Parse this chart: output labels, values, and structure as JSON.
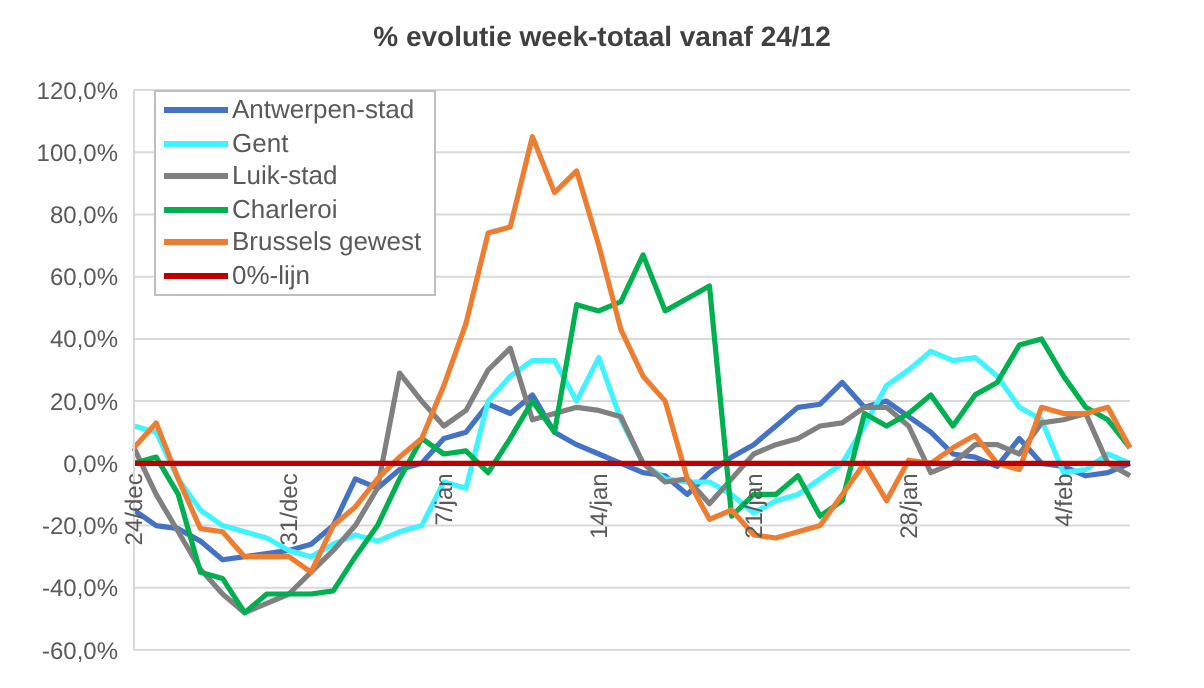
{
  "chart_data": {
    "type": "line",
    "title": "% evolutie week-totaal  vanaf 24/12",
    "categories": [
      "24/dec",
      null,
      null,
      null,
      null,
      null,
      null,
      "31/dec",
      null,
      null,
      null,
      null,
      null,
      null,
      "7/jan",
      null,
      null,
      null,
      null,
      null,
      null,
      "14/jan",
      null,
      null,
      null,
      null,
      null,
      null,
      "21/jan",
      null,
      null,
      null,
      null,
      null,
      null,
      "28/jan",
      null,
      null,
      null,
      null,
      null,
      null,
      "4/feb",
      null,
      null,
      null
    ],
    "series": [
      {
        "name": "Antwerpen-stad",
        "color": "#4472c4",
        "values": [
          -15,
          -20,
          -21,
          -25,
          -31,
          -30,
          -29,
          -28,
          -26,
          -20,
          -5,
          -8,
          -2,
          0,
          8,
          10,
          19,
          16,
          22,
          10,
          6,
          3,
          0,
          -3,
          -4,
          -10,
          -3,
          2,
          6,
          12,
          18,
          19,
          26,
          18,
          20,
          15,
          10,
          3,
          2,
          -1,
          8,
          0,
          -1,
          -4,
          -3,
          0
        ]
      },
      {
        "name": "Gent",
        "color": "#3ff3ff",
        "values": [
          12,
          10,
          -5,
          -15,
          -20,
          -22,
          -24,
          -28,
          -30,
          -26,
          -23,
          -25,
          -22,
          -20,
          -6,
          -8,
          20,
          28,
          33,
          33,
          20,
          34,
          14,
          0,
          -5,
          -6,
          -6,
          -10,
          -16,
          -12,
          -10,
          -5,
          0,
          12,
          25,
          30,
          36,
          33,
          34,
          28,
          18,
          14,
          -3,
          -2,
          3,
          0
        ]
      },
      {
        "name": "Luik-stad",
        "color": "#808080",
        "values": [
          5,
          -10,
          -22,
          -34,
          -42,
          -48,
          -45,
          -42,
          -35,
          -28,
          -20,
          -8,
          29,
          20,
          12,
          17,
          30,
          37,
          14,
          16,
          18,
          17,
          15,
          0,
          -6,
          -5,
          -13,
          -5,
          3,
          6,
          8,
          12,
          13,
          18,
          18,
          12,
          -3,
          0,
          6,
          6,
          3,
          13,
          14,
          16,
          0,
          -4
        ]
      },
      {
        "name": "Charleroi",
        "color": "#00b050",
        "values": [
          0,
          2,
          -10,
          -35,
          -37,
          -48,
          -42,
          -42,
          -42,
          -41,
          -30,
          -20,
          -5,
          8,
          3,
          4,
          -3,
          8,
          20,
          10,
          51,
          49,
          52,
          67,
          49,
          53,
          57,
          -17,
          -10,
          -10,
          -4,
          -17,
          -12,
          16,
          12,
          16,
          22,
          12,
          22,
          26,
          38,
          40,
          28,
          18,
          14,
          5
        ]
      },
      {
        "name": "Brussels gewest",
        "color": "#ed7d31",
        "values": [
          5,
          13,
          -5,
          -21,
          -22,
          -30,
          -30,
          -30,
          -35,
          -20,
          -14,
          -5,
          2,
          8,
          25,
          45,
          74,
          76,
          105,
          87,
          94,
          70,
          43,
          28,
          20,
          -5,
          -18,
          -15,
          -23,
          -24,
          -22,
          -20,
          -10,
          0,
          -12,
          1,
          0,
          5,
          9,
          0,
          -2,
          18,
          16,
          16,
          18,
          5
        ]
      },
      {
        "name": "0%-lijn",
        "color": "#c00000",
        "values": [
          0,
          0,
          0,
          0,
          0,
          0,
          0,
          0,
          0,
          0,
          0,
          0,
          0,
          0,
          0,
          0,
          0,
          0,
          0,
          0,
          0,
          0,
          0,
          0,
          0,
          0,
          0,
          0,
          0,
          0,
          0,
          0,
          0,
          0,
          0,
          0,
          0,
          0,
          0,
          0,
          0,
          0,
          0,
          0,
          0,
          0
        ]
      }
    ],
    "ylim": [
      -60,
      120
    ],
    "yticks": [
      {
        "value": -60,
        "label": "-60,0%"
      },
      {
        "value": -40,
        "label": "-40,0%"
      },
      {
        "value": -20,
        "label": "-20,0%"
      },
      {
        "value": 0,
        "label": "0,0%"
      },
      {
        "value": 20,
        "label": "20,0%"
      },
      {
        "value": 40,
        "label": "40,0%"
      },
      {
        "value": 60,
        "label": "60,0%"
      },
      {
        "value": 80,
        "label": "80,0%"
      },
      {
        "value": 100,
        "label": "100,0%"
      },
      {
        "value": 120,
        "label": "120,0%"
      }
    ],
    "grid": "y",
    "legend": "top left",
    "marker": "none",
    "line_style": "solid"
  }
}
